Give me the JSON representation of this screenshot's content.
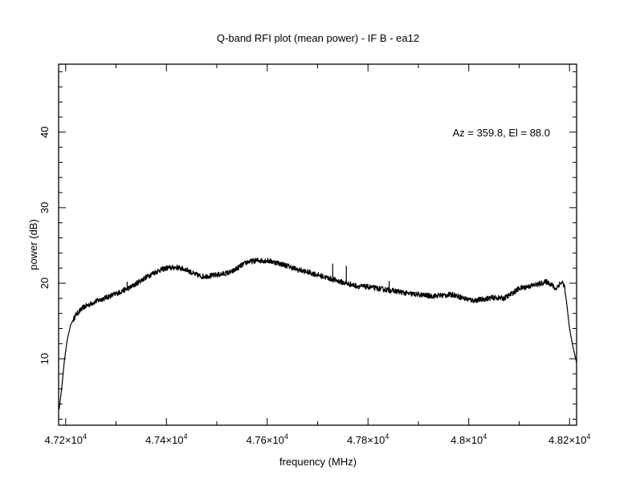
{
  "chart_data": {
    "type": "line",
    "title": "Q-band RFI plot (mean power) - IF B - ea12",
    "xlabel": "frequency (MHz)",
    "ylabel": "power (dB)",
    "annotation": "Az = 359.8, El = 88.0",
    "xlim": [
      47186,
      48214
    ],
    "ylim": [
      1.2,
      49.0
    ],
    "x_ticks": [
      {
        "value": 47200,
        "label": "4.72×10",
        "exp": "4"
      },
      {
        "value": 47400,
        "label": "4.74×10",
        "exp": "4"
      },
      {
        "value": 47600,
        "label": "4.76×10",
        "exp": "4"
      },
      {
        "value": 47800,
        "label": "4.78×10",
        "exp": "4"
      },
      {
        "value": 48000,
        "label": "4.8×10",
        "exp": "4"
      },
      {
        "value": 48200,
        "label": "4.82×10",
        "exp": "4"
      }
    ],
    "x_minor_step": 100,
    "y_ticks": [
      {
        "value": 10,
        "label": "10"
      },
      {
        "value": 20,
        "label": "20"
      },
      {
        "value": 30,
        "label": "30"
      },
      {
        "value": 40,
        "label": "40"
      }
    ],
    "y_minor_step": 2,
    "grid": false,
    "series": [
      {
        "name": "mean power",
        "color": "#000000",
        "x": [
          47187,
          47192,
          47197,
          47203,
          47210,
          47220,
          47235,
          47260,
          47300,
          47330,
          47350,
          47370,
          47385,
          47400,
          47420,
          47440,
          47455,
          47470,
          47490,
          47510,
          47530,
          47545,
          47560,
          47580,
          47600,
          47620,
          47640,
          47660,
          47690,
          47720,
          47750,
          47780,
          47800,
          47830,
          47860,
          47880,
          47900,
          47925,
          47950,
          47970,
          47990,
          48010,
          48030,
          48050,
          48070,
          48085,
          48100,
          48120,
          48140,
          48155,
          48165,
          48172,
          48180,
          48186,
          48190,
          48195,
          48200,
          48207,
          48214
        ],
        "y": [
          3.3,
          6,
          9.5,
          12.5,
          14.5,
          15.8,
          16.8,
          17.6,
          18.6,
          19.5,
          20.4,
          21.2,
          21.7,
          22.0,
          22.1,
          21.8,
          21.2,
          20.9,
          21.0,
          21.2,
          21.5,
          22.2,
          22.8,
          23.0,
          23.0,
          22.7,
          22.3,
          21.8,
          21.3,
          20.7,
          20.1,
          19.6,
          19.5,
          19.2,
          18.9,
          18.6,
          18.5,
          18.3,
          18.4,
          18.5,
          18.0,
          17.7,
          17.9,
          18.1,
          18.0,
          18.6,
          19.3,
          19.6,
          19.9,
          20.2,
          19.8,
          19.2,
          19.9,
          20.1,
          19.6,
          17,
          14,
          11.5,
          9.5
        ],
        "noise_db": 0.35,
        "spikes": [
          {
            "x": 47730,
            "y": 22.6
          },
          {
            "x": 47757,
            "y": 22.3
          },
          {
            "x": 47842,
            "y": 20.3
          },
          {
            "x": 47322,
            "y": 20.2
          }
        ]
      }
    ]
  }
}
